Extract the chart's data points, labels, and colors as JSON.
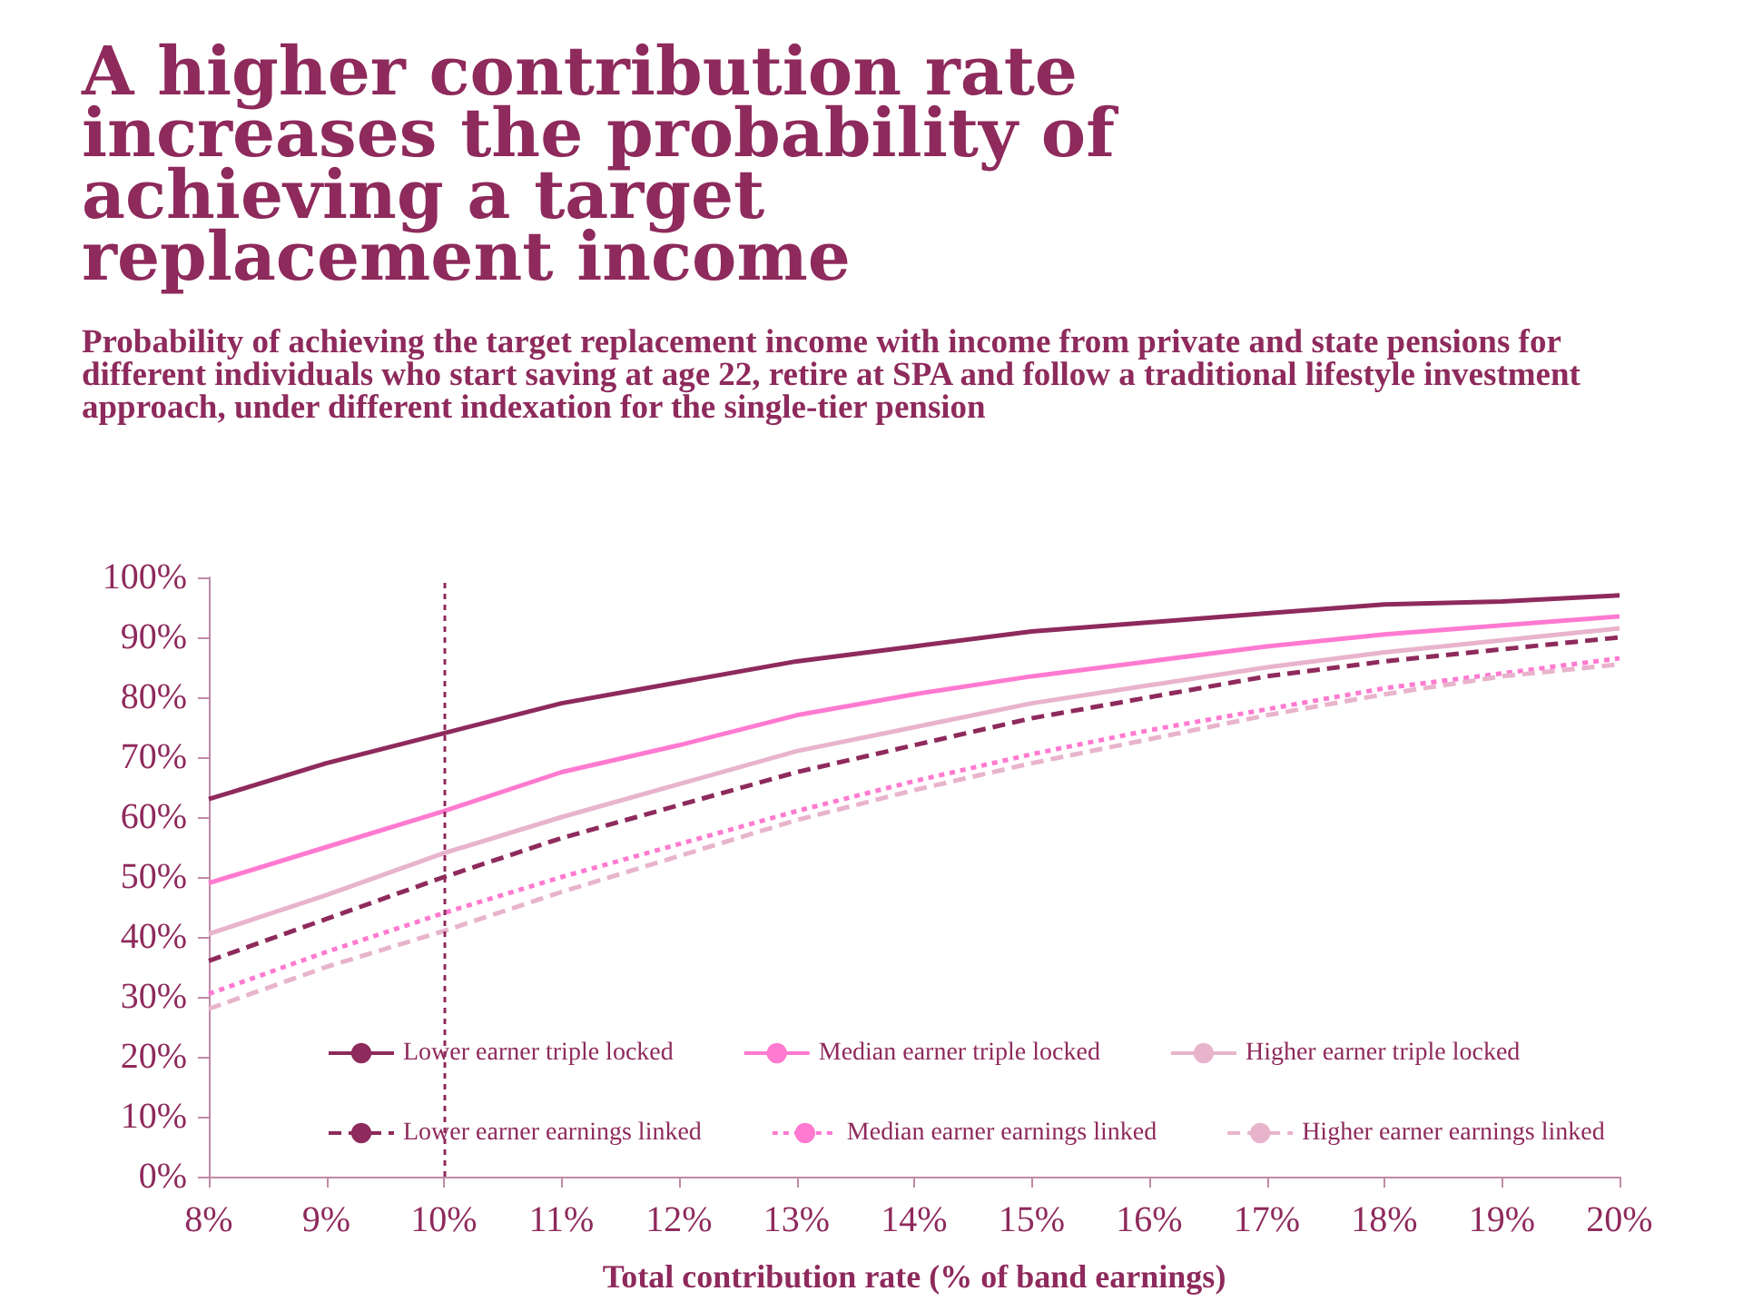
{
  "chart_data": {
    "type": "line",
    "title": "A higher contribution rate increases the probability of achieving a target replacement income",
    "subtitle": "Probability of achieving the target replacement income with income from private and state pensions for different individuals who start saving at age 22, retire at SPA and follow a traditional lifestyle investment approach, under different indexation for the single-tier pension",
    "xlabel": "Total contribution rate (% of band earnings)",
    "categories": [
      "8%",
      "9%",
      "10%",
      "11%",
      "12%",
      "13%",
      "14%",
      "15%",
      "16%",
      "17%",
      "18%",
      "19%",
      "20%"
    ],
    "ylim": [
      0,
      100
    ],
    "yticks": [
      {
        "value": 0,
        "label": "0%"
      },
      {
        "value": 10,
        "label": "10%"
      },
      {
        "value": 20,
        "label": "20%"
      },
      {
        "value": 30,
        "label": "30%"
      },
      {
        "value": 40,
        "label": "40%"
      },
      {
        "value": 50,
        "label": "50%"
      },
      {
        "value": 60,
        "label": "60%"
      },
      {
        "value": 70,
        "label": "70%"
      },
      {
        "value": 80,
        "label": "80%"
      },
      {
        "value": 90,
        "label": "90%"
      },
      {
        "value": 100,
        "label": "100%"
      }
    ],
    "grid": false,
    "legend": "bottom",
    "marker": "none",
    "ref_lines": [
      {
        "axis": "x",
        "value": "10%",
        "label": null,
        "color": "#8e2a5c",
        "line_style": "dotted"
      }
    ],
    "series": [
      {
        "name": "Lower earner triple locked",
        "color": "#8e2a5c",
        "line_style": "solid",
        "values": [
          63,
          69,
          74,
          79,
          82.5,
          86,
          88.5,
          91,
          92.5,
          94,
          95.5,
          96,
          97
        ]
      },
      {
        "name": "Median earner triple locked",
        "color": "#ff7ad0",
        "line_style": "solid",
        "values": [
          49,
          55,
          61,
          67.5,
          72,
          77,
          80.5,
          83.5,
          86,
          88.5,
          90.5,
          92,
          93.5
        ]
      },
      {
        "name": "Higher earner triple locked",
        "color": "#e8b4cc",
        "line_style": "solid",
        "values": [
          40.5,
          47,
          54,
          60,
          65.5,
          71,
          75,
          79,
          82,
          85,
          87.5,
          89.5,
          91.5
        ]
      },
      {
        "name": "Lower earner earnings linked",
        "color": "#8e2a5c",
        "line_style": "dashed",
        "values": [
          36,
          43,
          50,
          56.5,
          62,
          67.5,
          72,
          76.5,
          80,
          83.5,
          86,
          88,
          90
        ]
      },
      {
        "name": "Median earner earnings linked",
        "color": "#ff7ad0",
        "line_style": "dotted",
        "values": [
          30.5,
          37.5,
          44,
          50,
          55.5,
          61,
          66,
          70.5,
          74.5,
          78,
          81.5,
          84,
          86.5
        ]
      },
      {
        "name": "Higher earner earnings linked",
        "color": "#e8b4cc",
        "line_style": "dashed",
        "values": [
          28,
          35,
          41,
          47.5,
          53.5,
          59.5,
          64.5,
          69,
          73,
          77,
          80.5,
          83.5,
          85.5
        ]
      }
    ]
  }
}
